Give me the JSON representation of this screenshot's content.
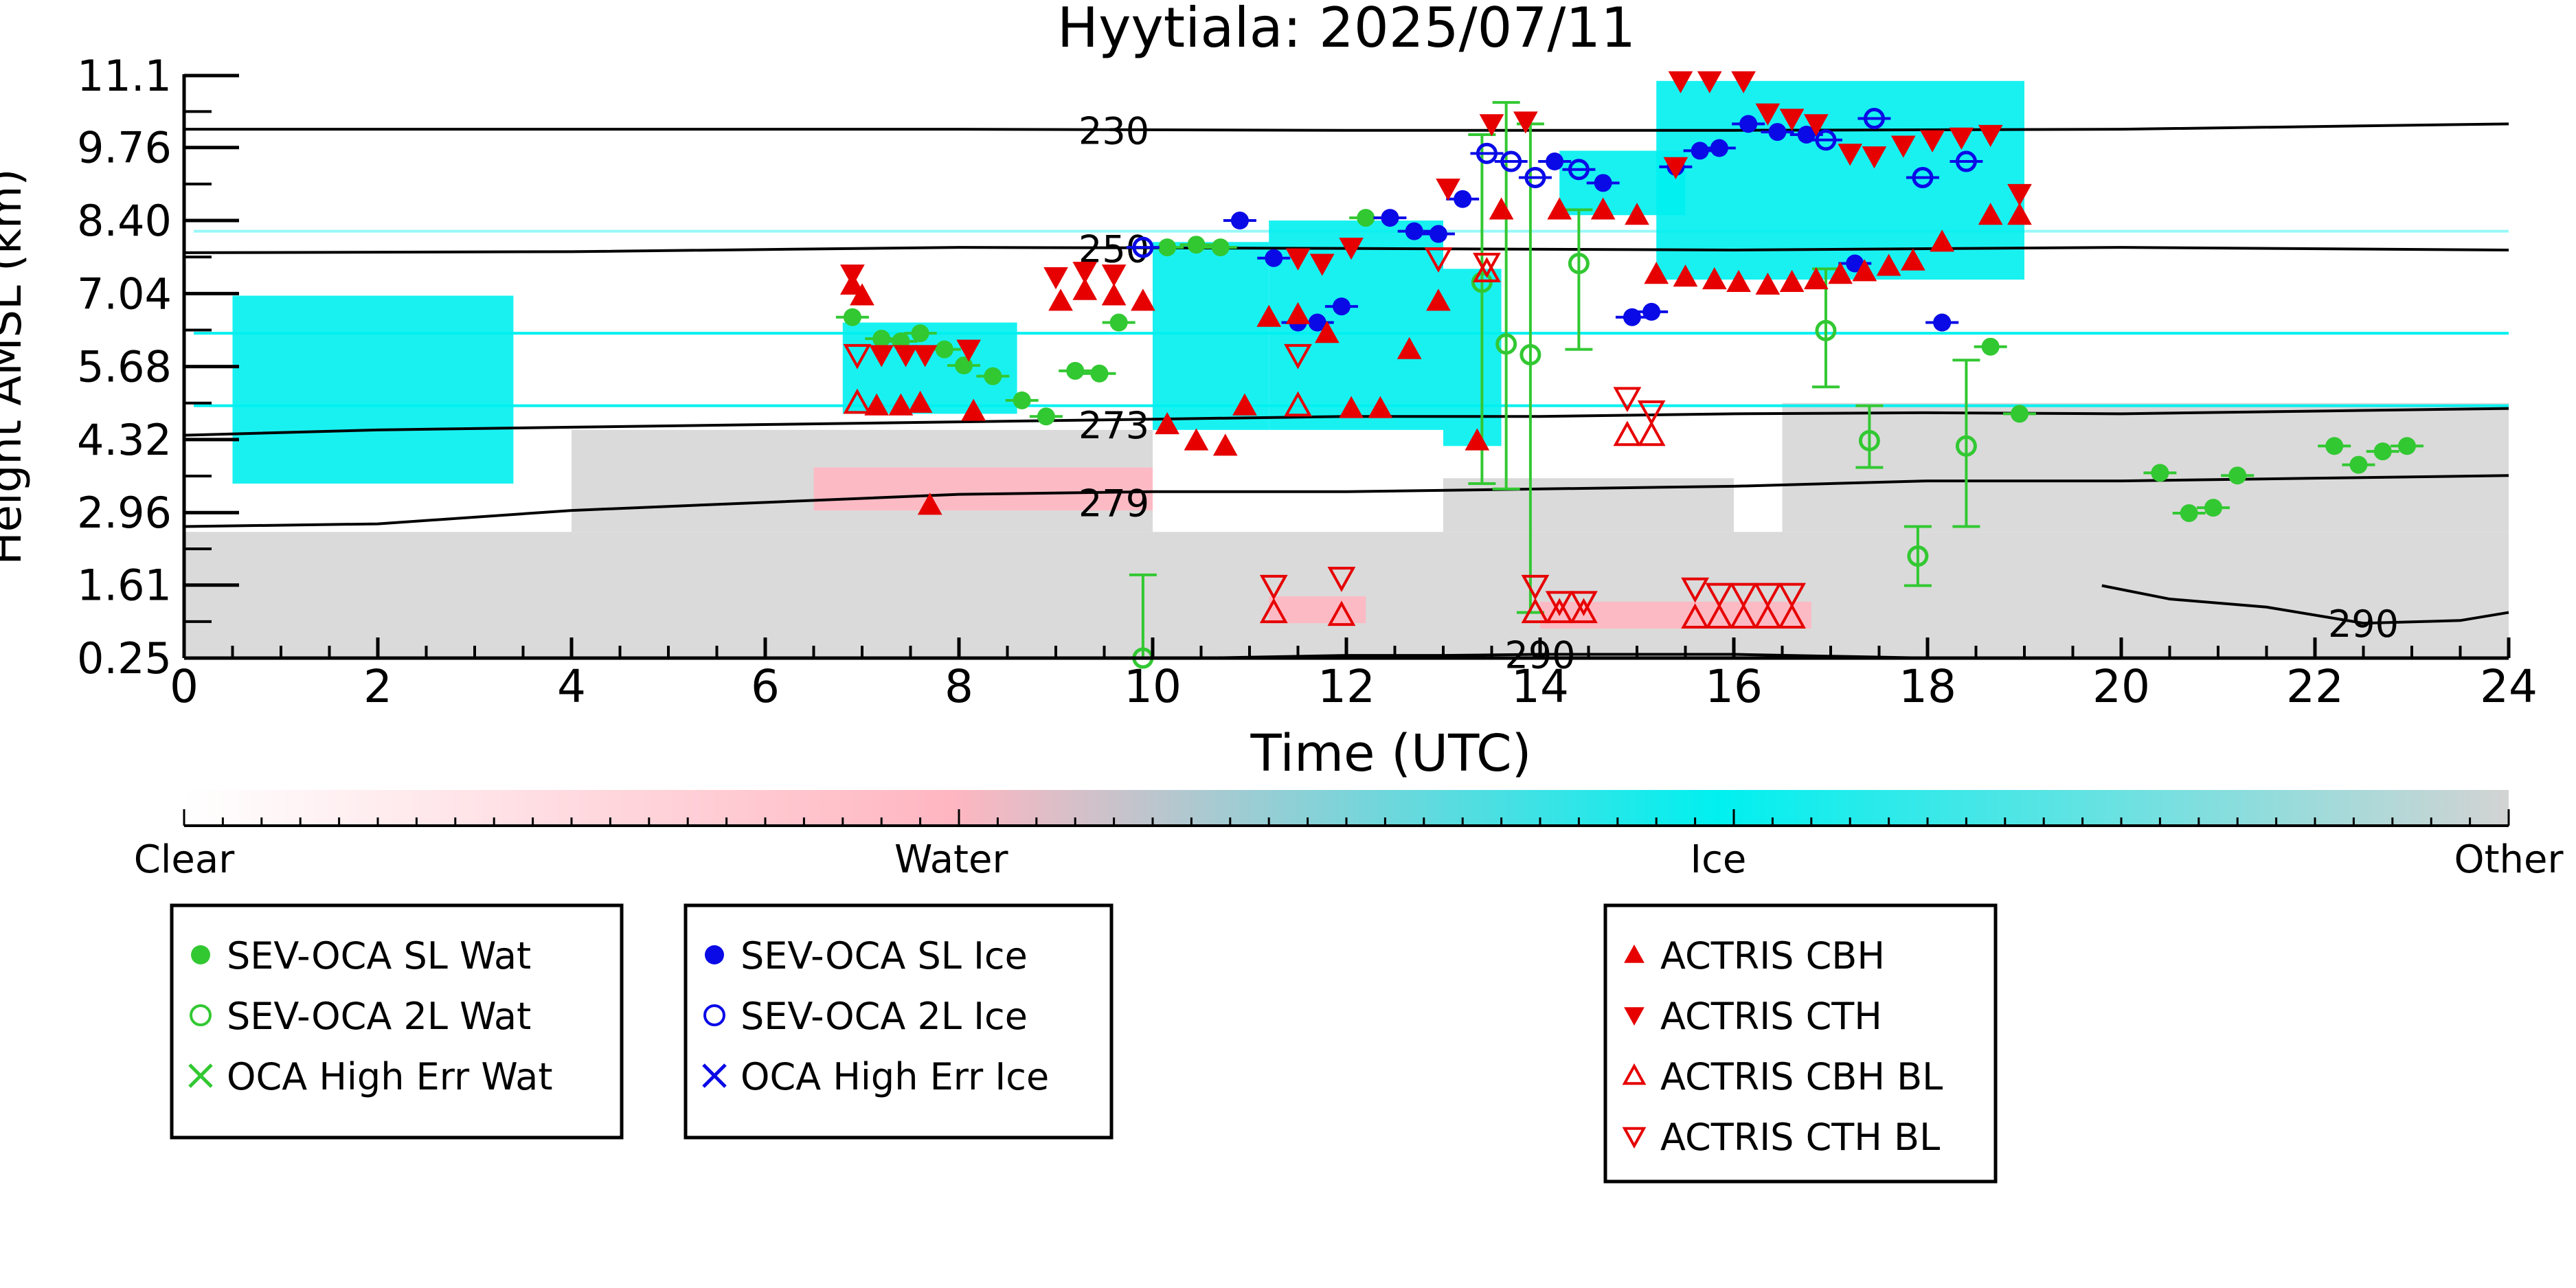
{
  "chart_data": {
    "type": "scatter",
    "title": "Hyytiala: 2025/07/11",
    "xlabel": "Time (UTC)",
    "ylabel": "Height AMSL (km)",
    "xlim": [
      0,
      24
    ],
    "ylim": [
      0.25,
      11.1
    ],
    "x_ticks": [
      "0",
      "2",
      "4",
      "6",
      "8",
      "10",
      "12",
      "14",
      "16",
      "18",
      "20",
      "22",
      "24"
    ],
    "y_ticks": [
      "0.25",
      "1.61",
      "2.96",
      "4.32",
      "5.68",
      "7.04",
      "8.40",
      "9.76",
      "11.1"
    ],
    "grid": false,
    "colorbar": {
      "labels": [
        "Clear",
        "Water",
        "Ice",
        "Other"
      ],
      "colors": [
        "#ffffff",
        "#ffb6c1",
        "#00f0f0",
        "#d3d3d3"
      ]
    },
    "contours": [
      {
        "label": "230",
        "points": [
          [
            0,
            10.1
          ],
          [
            4,
            10.1
          ],
          [
            8,
            10.1
          ],
          [
            12,
            10.08
          ],
          [
            16,
            10.08
          ],
          [
            20,
            10.1
          ],
          [
            24,
            10.2
          ]
        ]
      },
      {
        "label": "250",
        "points": [
          [
            0,
            7.8
          ],
          [
            4,
            7.82
          ],
          [
            8,
            7.9
          ],
          [
            12,
            7.88
          ],
          [
            16,
            7.85
          ],
          [
            20,
            7.9
          ],
          [
            24,
            7.85
          ]
        ]
      },
      {
        "label": "273",
        "points": [
          [
            0,
            4.4
          ],
          [
            2,
            4.5
          ],
          [
            4,
            4.55
          ],
          [
            6,
            4.6
          ],
          [
            8,
            4.65
          ],
          [
            10,
            4.7
          ],
          [
            12,
            4.75
          ],
          [
            14,
            4.75
          ],
          [
            16,
            4.8
          ],
          [
            18,
            4.82
          ],
          [
            20,
            4.8
          ],
          [
            22,
            4.85
          ],
          [
            24,
            4.9
          ]
        ]
      },
      {
        "label": "279",
        "points": [
          [
            0,
            2.7
          ],
          [
            2,
            2.75
          ],
          [
            4,
            3.0
          ],
          [
            6,
            3.15
          ],
          [
            8,
            3.3
          ],
          [
            10,
            3.35
          ],
          [
            12,
            3.35
          ],
          [
            14,
            3.4
          ],
          [
            16,
            3.45
          ],
          [
            18,
            3.55
          ],
          [
            20,
            3.55
          ],
          [
            22,
            3.6
          ],
          [
            24,
            3.65
          ]
        ]
      },
      {
        "label": "290",
        "points": [
          [
            19.8,
            1.6
          ],
          [
            20.5,
            1.35
          ],
          [
            21.5,
            1.2
          ],
          [
            22.5,
            0.9
          ],
          [
            23.5,
            0.95
          ],
          [
            24,
            1.1
          ]
        ]
      },
      {
        "label": "290",
        "points": [
          [
            10.5,
            0.25
          ],
          [
            12,
            0.3
          ],
          [
            13,
            0.3
          ],
          [
            14,
            0.32
          ],
          [
            16,
            0.32
          ],
          [
            18,
            0.25
          ]
        ]
      }
    ],
    "cloud_regions": [
      {
        "class": "Other",
        "x0": 0,
        "x1": 24,
        "y0": 0.25,
        "y1": 2.6
      },
      {
        "class": "Other",
        "x0": 4,
        "x1": 10,
        "y0": 2.6,
        "y1": 4.5
      },
      {
        "class": "Other",
        "x0": 16.5,
        "x1": 24,
        "y0": 2.6,
        "y1": 5.0
      },
      {
        "class": "Other",
        "x0": 13,
        "x1": 16,
        "y0": 2.6,
        "y1": 3.6
      },
      {
        "class": "Water",
        "x0": 6.5,
        "x1": 10,
        "y0": 3.0,
        "y1": 3.8
      },
      {
        "class": "Water",
        "x0": 11.2,
        "x1": 12.2,
        "y0": 0.9,
        "y1": 1.4
      },
      {
        "class": "Water",
        "x0": 14,
        "x1": 16.8,
        "y0": 0.8,
        "y1": 1.3
      },
      {
        "class": "Ice",
        "x0": 0.5,
        "x1": 3.4,
        "y0": 3.5,
        "y1": 7.0
      },
      {
        "class": "Ice",
        "x0": 6.8,
        "x1": 8.6,
        "y0": 4.8,
        "y1": 6.5
      },
      {
        "class": "Ice",
        "x0": 10,
        "x1": 11.2,
        "y0": 4.5,
        "y1": 8.0
      },
      {
        "class": "Ice",
        "x0": 11.2,
        "x1": 13,
        "y0": 4.5,
        "y1": 8.4
      },
      {
        "class": "Ice",
        "x0": 13,
        "x1": 13.6,
        "y0": 4.2,
        "y1": 7.5
      },
      {
        "class": "Ice",
        "x0": 15.2,
        "x1": 19,
        "y0": 7.3,
        "y1": 11.0
      },
      {
        "class": "Ice",
        "x0": 14.2,
        "x1": 15.5,
        "y0": 8.5,
        "y1": 9.7
      }
    ],
    "series": [
      {
        "name": "SEV-OCA SL Wat",
        "marker": "filled-circle",
        "color": "#32c832",
        "points": [
          [
            6.9,
            6.6
          ],
          [
            7.2,
            6.2
          ],
          [
            7.4,
            6.15
          ],
          [
            7.6,
            6.3
          ],
          [
            7.85,
            6.0
          ],
          [
            8.05,
            5.7
          ],
          [
            8.35,
            5.5
          ],
          [
            8.65,
            5.05
          ],
          [
            8.9,
            4.75
          ],
          [
            9.2,
            5.6
          ],
          [
            9.45,
            5.55
          ],
          [
            9.65,
            6.5
          ],
          [
            10.15,
            7.9
          ],
          [
            10.45,
            7.95
          ],
          [
            10.7,
            7.9
          ],
          [
            12.2,
            8.45
          ],
          [
            18.15,
            6.5
          ],
          [
            18.65,
            6.05
          ],
          [
            18.95,
            4.8
          ],
          [
            20.4,
            3.7
          ],
          [
            20.7,
            2.95
          ],
          [
            20.95,
            3.05
          ],
          [
            21.2,
            3.65
          ],
          [
            22.2,
            4.2
          ],
          [
            22.45,
            3.85
          ],
          [
            22.7,
            4.1
          ],
          [
            22.95,
            4.2
          ]
        ]
      },
      {
        "name": "SEV-OCA 2L Wat",
        "marker": "open-circle",
        "color": "#32c832",
        "errorbars": true,
        "points": [
          [
            9.9,
            0.25,
            0.25,
            1.8
          ],
          [
            13.4,
            7.25,
            3.5,
            10.0
          ],
          [
            13.65,
            6.1,
            3.4,
            10.6
          ],
          [
            13.9,
            5.9,
            1.1,
            10.2
          ],
          [
            14.4,
            7.6,
            6.0,
            8.6
          ],
          [
            16.95,
            6.35,
            5.3,
            7.5
          ],
          [
            17.4,
            4.3,
            3.8,
            4.95
          ],
          [
            17.9,
            2.15,
            1.6,
            2.7
          ],
          [
            18.4,
            4.2,
            2.7,
            5.8
          ]
        ]
      },
      {
        "name": "OCA High Err Wat",
        "marker": "cross",
        "color": "#32c832",
        "points": []
      },
      {
        "name": "SEV-OCA SL Ice",
        "marker": "filled-circle",
        "color": "#0a0ae6",
        "points": [
          [
            10.9,
            8.4
          ],
          [
            11.25,
            7.7
          ],
          [
            11.5,
            6.5
          ],
          [
            11.7,
            6.5
          ],
          [
            11.95,
            6.8
          ],
          [
            12.45,
            8.45
          ],
          [
            12.7,
            8.2
          ],
          [
            12.95,
            8.15
          ],
          [
            13.2,
            8.8
          ],
          [
            14.15,
            9.5
          ],
          [
            14.65,
            9.1
          ],
          [
            14.95,
            6.6
          ],
          [
            15.15,
            6.7
          ],
          [
            15.4,
            9.4
          ],
          [
            15.65,
            9.7
          ],
          [
            15.85,
            9.75
          ],
          [
            16.15,
            10.2
          ],
          [
            16.45,
            10.05
          ],
          [
            16.75,
            10.0
          ],
          [
            17.25,
            7.6
          ],
          [
            18.15,
            6.5
          ]
        ]
      },
      {
        "name": "SEV-OCA 2L Ice",
        "marker": "open-circle",
        "color": "#0a0ae6",
        "points": [
          [
            9.9,
            7.9
          ],
          [
            13.45,
            9.65
          ],
          [
            13.7,
            9.5
          ],
          [
            13.95,
            9.2
          ],
          [
            14.4,
            9.35
          ],
          [
            16.95,
            9.9
          ],
          [
            17.45,
            10.3
          ],
          [
            17.95,
            9.2
          ],
          [
            18.4,
            9.5
          ]
        ]
      },
      {
        "name": "OCA High Err Ice",
        "marker": "cross",
        "color": "#0a0ae6",
        "points": []
      },
      {
        "name": "ACTRIS CBH",
        "marker": "filled-triangle-up",
        "color": "#e60000",
        "points": [
          [
            6.9,
            7.2
          ],
          [
            7.0,
            7.0
          ],
          [
            7.15,
            4.95
          ],
          [
            7.4,
            4.95
          ],
          [
            7.6,
            5.0
          ],
          [
            7.7,
            3.1
          ],
          [
            8.15,
            4.85
          ],
          [
            9.05,
            6.9
          ],
          [
            9.3,
            7.1
          ],
          [
            9.6,
            7.0
          ],
          [
            9.9,
            6.9
          ],
          [
            10.15,
            4.6
          ],
          [
            10.45,
            4.3
          ],
          [
            10.75,
            4.2
          ],
          [
            10.95,
            4.95
          ],
          [
            11.2,
            6.6
          ],
          [
            11.5,
            6.65
          ],
          [
            11.8,
            6.3
          ],
          [
            12.05,
            4.9
          ],
          [
            12.35,
            4.9
          ],
          [
            12.65,
            6.0
          ],
          [
            12.95,
            6.9
          ],
          [
            13.35,
            4.3
          ],
          [
            13.6,
            8.6
          ],
          [
            14.2,
            8.6
          ],
          [
            14.65,
            8.6
          ],
          [
            15.0,
            8.5
          ],
          [
            15.2,
            7.4
          ],
          [
            15.5,
            7.35
          ],
          [
            15.8,
            7.3
          ],
          [
            16.05,
            7.25
          ],
          [
            16.35,
            7.2
          ],
          [
            16.6,
            7.25
          ],
          [
            16.85,
            7.3
          ],
          [
            17.1,
            7.4
          ],
          [
            17.35,
            7.45
          ],
          [
            17.6,
            7.55
          ],
          [
            17.85,
            7.65
          ],
          [
            18.15,
            8.0
          ],
          [
            18.65,
            8.5
          ],
          [
            18.95,
            8.5
          ]
        ]
      },
      {
        "name": "ACTRIS CTH",
        "marker": "filled-triangle-down",
        "color": "#e60000",
        "points": [
          [
            6.9,
            7.4
          ],
          [
            7.2,
            5.9
          ],
          [
            7.45,
            5.9
          ],
          [
            7.65,
            5.9
          ],
          [
            8.1,
            6.0
          ],
          [
            9.0,
            7.35
          ],
          [
            9.3,
            7.45
          ],
          [
            9.6,
            7.4
          ],
          [
            11.5,
            7.7
          ],
          [
            11.75,
            7.6
          ],
          [
            12.05,
            7.9
          ],
          [
            13.05,
            9.0
          ],
          [
            13.5,
            10.2
          ],
          [
            13.85,
            10.25
          ],
          [
            15.45,
            11.0
          ],
          [
            15.75,
            11.0
          ],
          [
            16.1,
            11.0
          ],
          [
            16.35,
            10.4
          ],
          [
            16.6,
            10.3
          ],
          [
            16.85,
            10.2
          ],
          [
            17.2,
            9.65
          ],
          [
            17.45,
            9.6
          ],
          [
            17.75,
            9.8
          ],
          [
            18.05,
            9.9
          ],
          [
            18.35,
            9.95
          ],
          [
            18.65,
            10.0
          ],
          [
            18.95,
            8.9
          ],
          [
            15.4,
            9.4
          ]
        ]
      },
      {
        "name": "ACTRIS CBH BL",
        "marker": "open-triangle-up",
        "color": "#e60000",
        "points": [
          [
            6.95,
            5.0
          ],
          [
            11.25,
            1.1
          ],
          [
            11.5,
            4.95
          ],
          [
            11.95,
            1.05
          ],
          [
            13.45,
            7.45
          ],
          [
            13.95,
            1.1
          ],
          [
            14.2,
            1.1
          ],
          [
            14.45,
            1.1
          ],
          [
            14.9,
            4.4
          ],
          [
            15.15,
            4.4
          ],
          [
            15.6,
            1.0
          ],
          [
            15.85,
            1.0
          ],
          [
            16.1,
            1.0
          ],
          [
            16.35,
            1.0
          ],
          [
            16.6,
            1.0
          ]
        ]
      },
      {
        "name": "ACTRIS CTH BL",
        "marker": "open-triangle-down",
        "color": "#e60000",
        "points": [
          [
            6.95,
            5.9
          ],
          [
            11.25,
            1.6
          ],
          [
            11.5,
            5.9
          ],
          [
            11.95,
            1.75
          ],
          [
            12.95,
            7.7
          ],
          [
            13.45,
            7.6
          ],
          [
            13.95,
            1.6
          ],
          [
            14.2,
            1.3
          ],
          [
            14.45,
            1.3
          ],
          [
            14.9,
            5.1
          ],
          [
            15.15,
            4.85
          ],
          [
            15.6,
            1.55
          ],
          [
            15.85,
            1.45
          ],
          [
            16.1,
            1.45
          ],
          [
            16.35,
            1.45
          ],
          [
            16.6,
            1.45
          ]
        ]
      }
    ]
  }
}
